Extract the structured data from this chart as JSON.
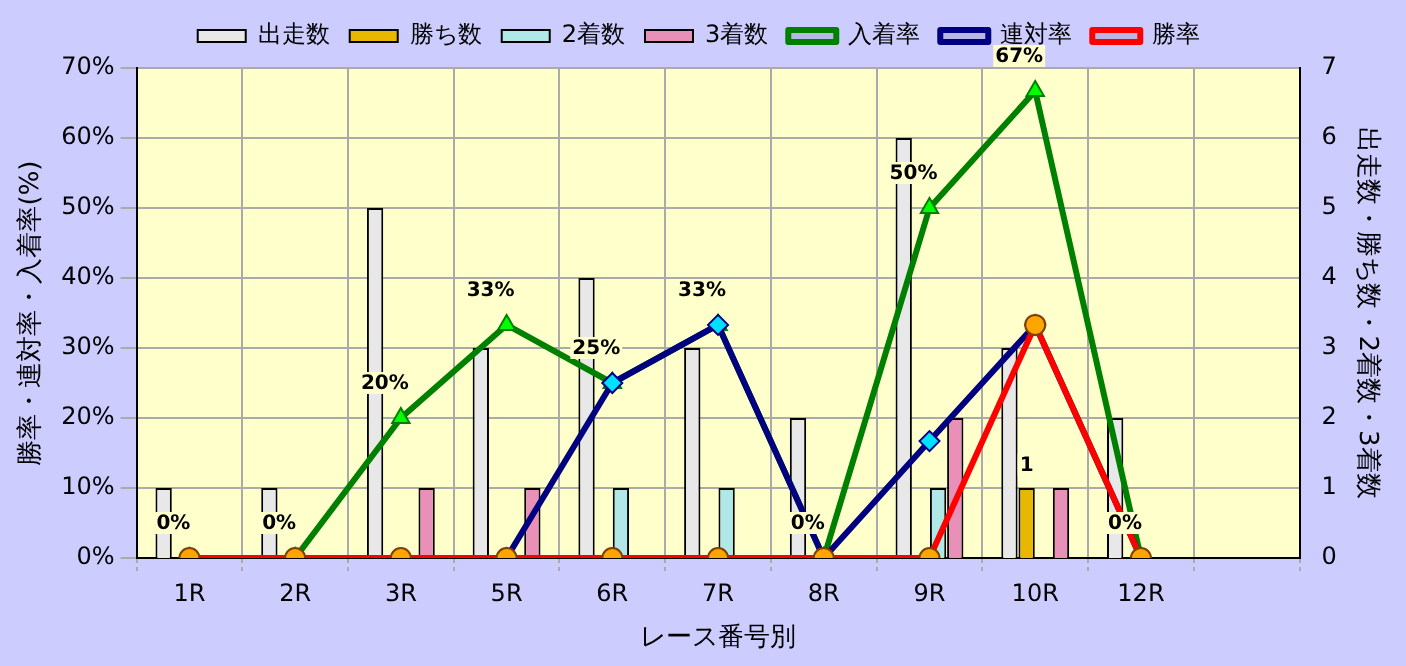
{
  "chart_data": {
    "type": "bar",
    "xlabel": "レース番号別",
    "ylabel": "勝率・連対率・入着率(%)",
    "y2label": "出走数・勝ち数・2着数・3着数",
    "categories": [
      "1R",
      "2R",
      "3R",
      "5R",
      "6R",
      "7R",
      "8R",
      "9R",
      "10R",
      "12R",
      null
    ],
    "ylim": [
      0,
      70
    ],
    "yticks": [
      {
        "value": 0,
        "label": "0%"
      },
      {
        "value": 10,
        "label": "10%"
      },
      {
        "value": 20,
        "label": "20%"
      },
      {
        "value": 30,
        "label": "30%"
      },
      {
        "value": 40,
        "label": "40%"
      },
      {
        "value": 50,
        "label": "50%"
      },
      {
        "value": 60,
        "label": "60%"
      },
      {
        "value": 70,
        "label": "70%"
      }
    ],
    "y2lim": [
      0,
      7
    ],
    "y2ticks": [
      0,
      1,
      2,
      3,
      4,
      5,
      6,
      7
    ],
    "grid": true,
    "legend": "top",
    "line_style": "solid",
    "series": [
      {
        "name": "出走数",
        "type": "bar",
        "axis": "y2",
        "color": "#e8e8e8",
        "values": [
          1,
          1,
          5,
          3,
          4,
          3,
          2,
          6,
          3,
          2,
          null
        ]
      },
      {
        "name": "勝ち数",
        "type": "bar",
        "axis": "y2",
        "color": "#e8b800",
        "values": [
          0,
          0,
          0,
          0,
          0,
          0,
          0,
          0,
          1,
          0,
          null
        ],
        "value_labels": [
          null,
          null,
          null,
          null,
          null,
          null,
          null,
          null,
          "1",
          null,
          null
        ]
      },
      {
        "name": "2着数",
        "type": "bar",
        "axis": "y2",
        "color": "#b0e8e8",
        "values": [
          0,
          0,
          0,
          0,
          1,
          1,
          0,
          1,
          0,
          0,
          null
        ]
      },
      {
        "name": "3着数",
        "type": "bar",
        "axis": "y2",
        "color": "#e890b8",
        "values": [
          0,
          0,
          1,
          1,
          0,
          0,
          0,
          2,
          1,
          0,
          null
        ]
      },
      {
        "name": "入着率",
        "type": "line",
        "color": "#008000",
        "marker": "triangle",
        "values": [
          0,
          0,
          20,
          33.3,
          25,
          33.3,
          0,
          50,
          66.7,
          0,
          null
        ],
        "value_labels": [
          "0%",
          "0%",
          "20%",
          "33%",
          "25%",
          "33%",
          "0%",
          "50%",
          "67%",
          "0%",
          null
        ]
      },
      {
        "name": "連対率",
        "type": "line",
        "color": "#000080",
        "marker": "diamond",
        "values": [
          null,
          null,
          null,
          0,
          25,
          33.3,
          0,
          16.7,
          33.3,
          0,
          null
        ]
      },
      {
        "name": "勝率",
        "type": "line",
        "color": "#ff0000",
        "marker": "circle",
        "values": [
          0,
          0,
          0,
          0,
          0,
          0,
          0,
          0,
          33.3,
          0,
          null
        ]
      }
    ]
  }
}
